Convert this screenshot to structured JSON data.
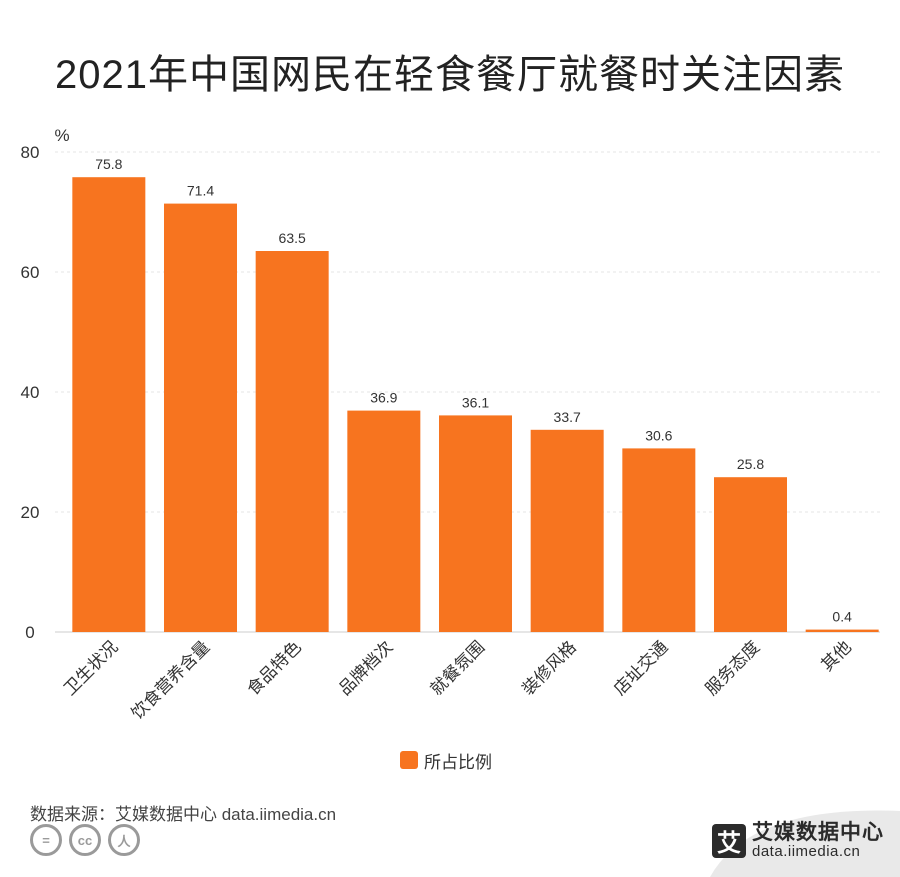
{
  "chart_data": {
    "type": "bar",
    "title": "2021年中国网民在轻食餐厅就餐时关注因素",
    "ylabel": "%",
    "xlabel": "",
    "ylim": [
      0,
      80
    ],
    "yticks": [
      0,
      20,
      40,
      60,
      80
    ],
    "grid": true,
    "legend_position": "bottom",
    "categories": [
      "卫生状况",
      "饮食营养含量",
      "食品特色",
      "品牌档次",
      "就餐氛围",
      "装修风格",
      "店址交通",
      "服务态度",
      "其他"
    ],
    "series": [
      {
        "name": "所占比例",
        "color": "#f7741f",
        "values": [
          75.8,
          71.4,
          63.5,
          36.9,
          36.1,
          33.7,
          30.6,
          25.8,
          0.4
        ]
      }
    ]
  },
  "source": "数据来源：艾媒数据中心 data.iimedia.cn",
  "cc_icons": [
    "=",
    "cc",
    "人"
  ],
  "brand": {
    "logo_char": "艾",
    "name": "艾媒数据中心",
    "url": "data.iimedia.cn"
  }
}
